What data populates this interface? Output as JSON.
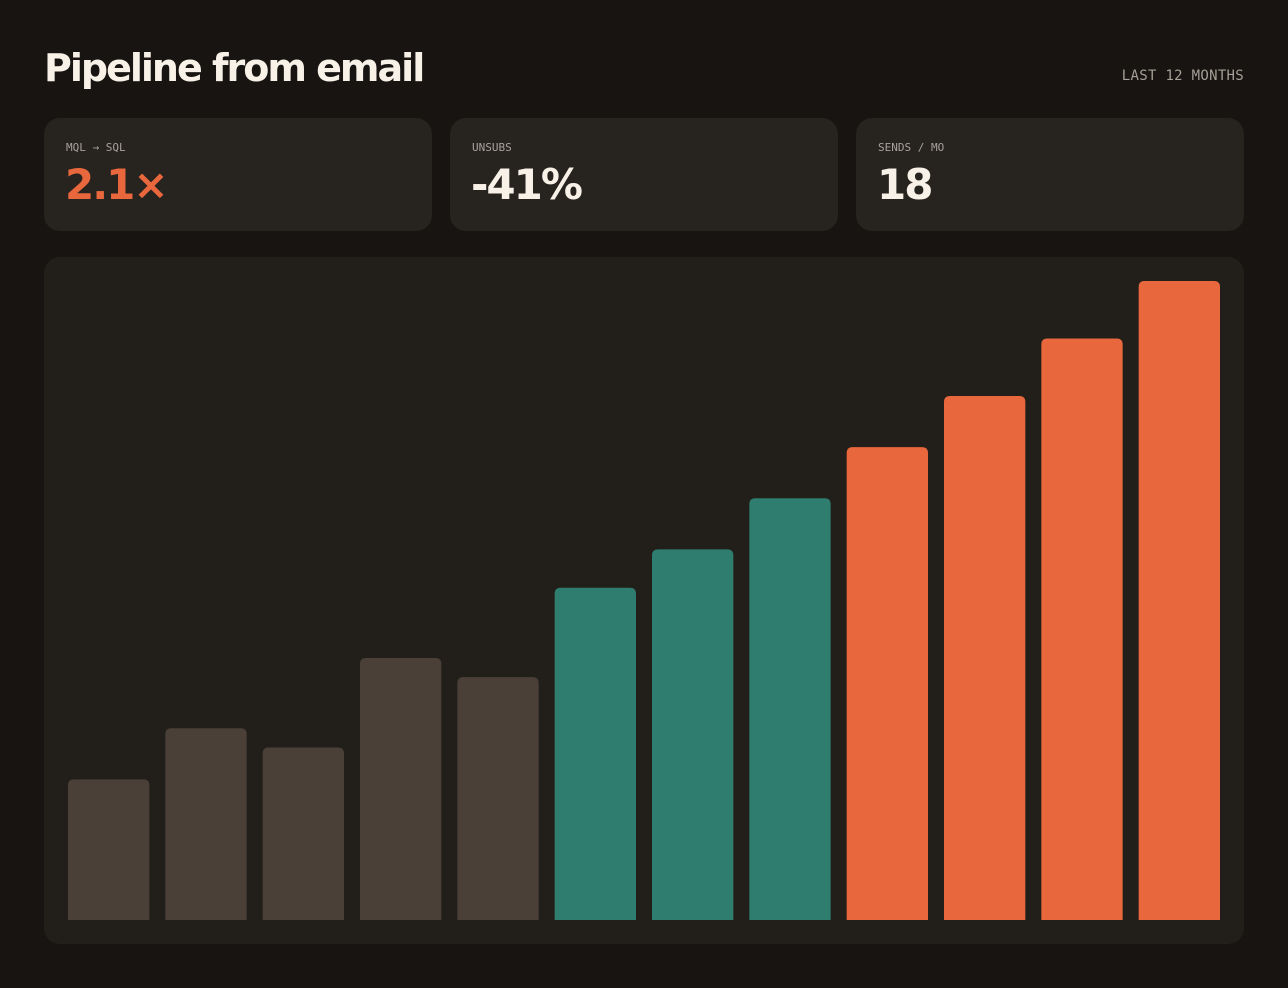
{
  "header": {
    "title": "Pipeline from email",
    "period": "LAST 12 MONTHS"
  },
  "kpis": [
    {
      "label": "MQL → SQL",
      "value": "2.1×",
      "accent": true
    },
    {
      "label": "UNSUBS",
      "value": "-41%",
      "accent": false
    },
    {
      "label": "SENDS / MO",
      "value": "18",
      "accent": false
    }
  ],
  "colors": {
    "background": "#171411",
    "card": "#27231f",
    "panel": "#221e1a",
    "accent": "#e8673c",
    "teal": "#2e7d6f",
    "muted_bar": "#4a4038"
  },
  "chart_data": {
    "type": "bar",
    "title": "",
    "xlabel": "",
    "ylabel": "",
    "ylim": [
      0,
      100
    ],
    "grid": false,
    "legend": "none",
    "values": [
      22,
      30,
      27,
      41,
      38,
      52,
      58,
      66,
      74,
      82,
      91,
      100
    ],
    "bar_colors": [
      "#4a4038",
      "#4a4038",
      "#4a4038",
      "#4a4038",
      "#4a4038",
      "#2e7d6f",
      "#2e7d6f",
      "#2e7d6f",
      "#e8673c",
      "#e8673c",
      "#e8673c",
      "#e8673c"
    ]
  }
}
